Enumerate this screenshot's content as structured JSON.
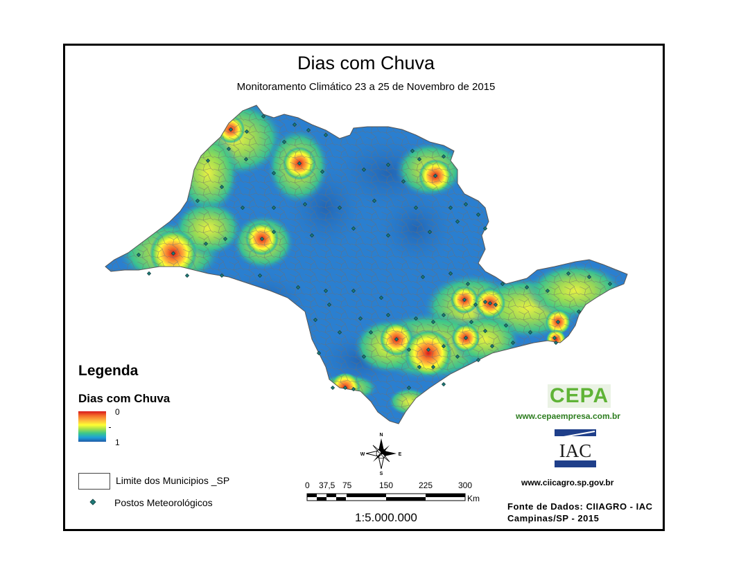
{
  "map": {
    "title": "Dias com Chuva",
    "subtitle": "Monitoramento Climático 23 a 25 de Novembro de 2015",
    "palette": [
      "#d7191c",
      "#f46d2a",
      "#fdae3c",
      "#ffff33",
      "#a6e04a",
      "#3cc88a",
      "#1ea0d8",
      "#2b7bc6",
      "#1f5ba8"
    ],
    "base_color": "#2a7fd0",
    "boundary_color": "#777777",
    "station_color": "#1f7a78"
  },
  "legend": {
    "title": "Legenda",
    "ramp_title": "Dias com Chuva",
    "ramp_max": "0",
    "ramp_min": "1",
    "limite_label": "Limite dos Municipios _SP",
    "postos_label": "Postos Meteorológicos"
  },
  "compass": {
    "n": "N",
    "s": "S",
    "e": "E",
    "w": "W"
  },
  "scale": {
    "ticks": [
      "0",
      "37,5",
      "75",
      "150",
      "225",
      "300"
    ],
    "unit": "Km",
    "ratio": "1:5.000.000"
  },
  "logos": {
    "cepa_text": "CEPA",
    "cepa_url": "www.cepaempresa.com.br",
    "iac_text": "IAC",
    "ciiagro_url": "www.ciicagro.sp.gov.br"
  },
  "credits": {
    "line1": "Fonte de Dados: CIIAGRO - IAC",
    "line2": "Campinas/SP - 2015"
  }
}
